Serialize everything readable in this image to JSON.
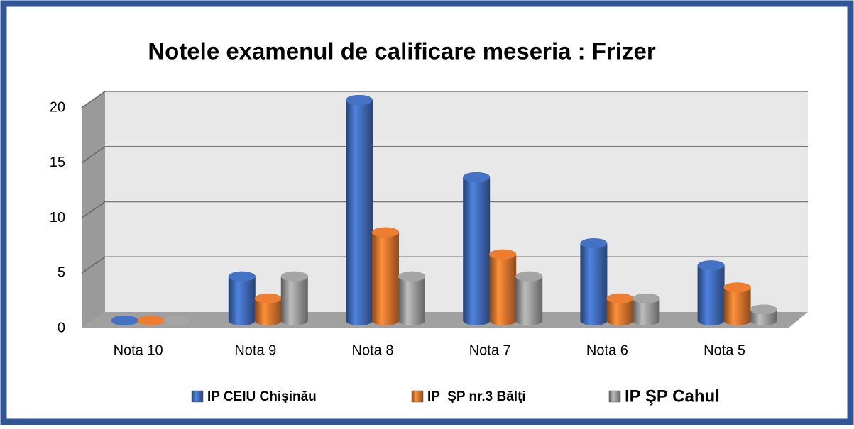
{
  "chart_data": {
    "type": "bar3d",
    "title": "Notele examenul de calificare meseria : Frizer",
    "categories": [
      "Nota 10",
      "Nota 9",
      "Nota 8",
      "Nota 7",
      "Nota 6",
      "Nota 5"
    ],
    "series": [
      {
        "name": "IP CEIU Chişinău",
        "color": "#4472c4",
        "values": [
          0,
          4,
          20,
          13,
          7,
          5
        ]
      },
      {
        "name": "IP  ŞP nr.3 Bălţi",
        "color": "#ed7d31",
        "values": [
          0,
          2,
          8,
          6,
          2,
          3
        ]
      },
      {
        "name": "IP ŞP Cahul",
        "color": "#a5a5a5",
        "values": [
          0,
          4,
          4,
          4,
          2,
          1
        ]
      }
    ],
    "ylim": [
      0,
      20
    ],
    "yticks": [
      0,
      5,
      10,
      15,
      20
    ],
    "grid": true
  }
}
